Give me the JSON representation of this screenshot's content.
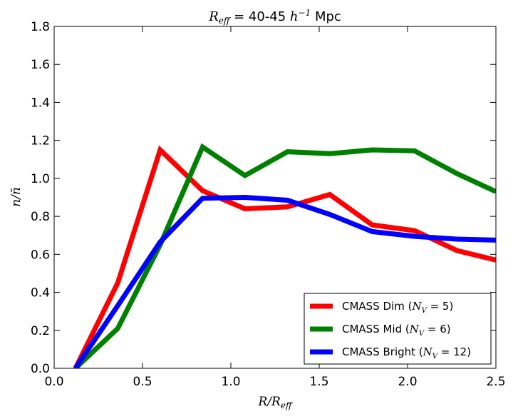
{
  "chart_data": {
    "type": "line",
    "title": "R_eff = 40-45 h^-1 Mpc",
    "title_parts": {
      "var": "R",
      "sub": "eff",
      "eq": " = 40-45 ",
      "h": "h",
      "sup": "−1",
      "unit": " Mpc"
    },
    "xlabel": "R/R_eff",
    "xlabel_parts": {
      "main": "R/R",
      "sub": "eff"
    },
    "ylabel": "n/n̄",
    "xlim": [
      0.0,
      2.5
    ],
    "ylim": [
      0.0,
      1.8
    ],
    "xticks": [
      "0.0",
      "0.5",
      "1.0",
      "1.5",
      "2.0",
      "2.5"
    ],
    "yticks": [
      "0.0",
      "0.2",
      "0.4",
      "0.6",
      "0.8",
      "1.0",
      "1.2",
      "1.4",
      "1.6",
      "1.8"
    ],
    "legend_position": "lower-right",
    "series": [
      {
        "name": "CMASS Dim (N_V = 5)",
        "label_main": "CMASS Dim (",
        "label_nv": "N",
        "label_nv_sub": "V",
        "label_tail": " = 5)",
        "color": "#ff0000",
        "x": [
          0.12,
          0.36,
          0.6,
          0.84,
          1.08,
          1.32,
          1.56,
          1.8,
          2.04,
          2.28,
          2.5
        ],
        "y": [
          0.0,
          0.45,
          1.15,
          0.935,
          0.84,
          0.85,
          0.915,
          0.755,
          0.725,
          0.62,
          0.57
        ]
      },
      {
        "name": "CMASS Mid (N_V = 6)",
        "label_main": "CMASS Mid (",
        "label_nv": "N",
        "label_nv_sub": "V",
        "label_tail": " = 6)",
        "color": "#008000",
        "x": [
          0.12,
          0.36,
          0.6,
          0.84,
          1.08,
          1.32,
          1.56,
          1.8,
          2.04,
          2.28,
          2.5
        ],
        "y": [
          0.0,
          0.21,
          0.65,
          1.165,
          1.015,
          1.14,
          1.13,
          1.15,
          1.145,
          1.025,
          0.93
        ]
      },
      {
        "name": "CMASS Bright (N_V = 12)",
        "label_main": "CMASS Bright (",
        "label_nv": "N",
        "label_nv_sub": "V",
        "label_tail": " = 12)",
        "color": "#0000ff",
        "x": [
          0.12,
          0.36,
          0.6,
          0.84,
          1.08,
          1.32,
          1.56,
          1.8,
          2.04,
          2.28,
          2.5
        ],
        "y": [
          0.0,
          0.33,
          0.665,
          0.895,
          0.9,
          0.885,
          0.81,
          0.72,
          0.695,
          0.68,
          0.675
        ]
      }
    ]
  }
}
